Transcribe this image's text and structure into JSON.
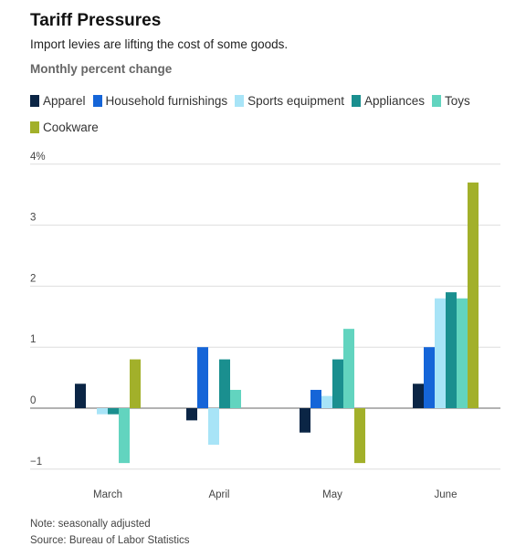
{
  "title": "Tariff Pressures",
  "subtitle": "Import levies are lifting the cost of some goods.",
  "unit_label": "Monthly percent change",
  "note": "Note: seasonally adjusted",
  "source": "Source: Bureau of Labor Statistics",
  "chart_data": {
    "type": "bar",
    "categories": [
      "March",
      "April",
      "May",
      "June"
    ],
    "y_tick_labels": [
      {
        "value": 4,
        "label": "4%"
      },
      {
        "value": 3,
        "label": "3"
      },
      {
        "value": 2,
        "label": "2"
      },
      {
        "value": 1,
        "label": "1"
      },
      {
        "value": 0,
        "label": "0"
      },
      {
        "value": -1,
        "label": "−1"
      }
    ],
    "ylim": [
      -1,
      4
    ],
    "grid": true,
    "legend_position": "top",
    "series": [
      {
        "name": "Apparel",
        "color": "#0b2545",
        "values": [
          0.4,
          -0.2,
          -0.4,
          0.4
        ]
      },
      {
        "name": "Household furnishings",
        "color": "#1565d8",
        "values": [
          0,
          1.0,
          0.3,
          1.0
        ]
      },
      {
        "name": "Sports equipment",
        "color": "#a8e4f7",
        "values": [
          -0.1,
          -0.6,
          0.2,
          1.8
        ]
      },
      {
        "name": "Appliances",
        "color": "#1a8f8f",
        "values": [
          -0.1,
          0.8,
          0.8,
          1.9
        ]
      },
      {
        "name": "Toys",
        "color": "#62d4bf",
        "values": [
          -0.9,
          0.3,
          1.3,
          1.8
        ]
      },
      {
        "name": "Cookware",
        "color": "#a2b02a",
        "values": [
          0.8,
          0,
          -0.9,
          3.7
        ]
      }
    ]
  }
}
